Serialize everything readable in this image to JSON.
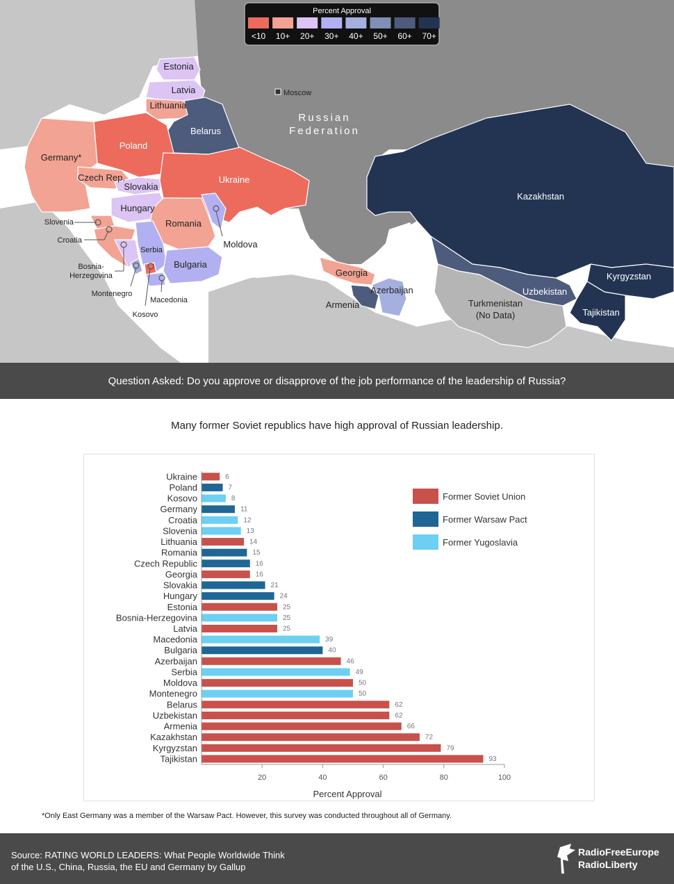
{
  "map": {
    "legend_title": "Percent Approval",
    "legend_bins": [
      {
        "label": "<10",
        "color": "#ec6b5c"
      },
      {
        "label": "10+",
        "color": "#f2a394"
      },
      {
        "label": "20+",
        "color": "#dcc5f4"
      },
      {
        "label": "30+",
        "color": "#b3b0f2"
      },
      {
        "label": "40+",
        "color": "#a5b0e0"
      },
      {
        "label": "50+",
        "color": "#7f8fb6"
      },
      {
        "label": "60+",
        "color": "#4d5b7d"
      },
      {
        "label": "70+",
        "color": "#233453"
      }
    ],
    "moscow_label": "Moscow",
    "russia_label_line1": "Russian",
    "russia_label_line2": "Federation",
    "country_labels": {
      "estonia": "Estonia",
      "latvia": "Latvia",
      "lithuania": "Lithuania",
      "belarus": "Belarus",
      "poland": "Poland",
      "germany": "Germany*",
      "czech": "Czech Rep.",
      "slovakia": "Slovakia",
      "ukraine": "Ukraine",
      "hungary": "Hungary",
      "romania": "Romania",
      "slovenia": "Slovenia",
      "croatia": "Croatia",
      "serbia": "Serbia",
      "moldova": "Moldova",
      "bulgaria": "Bulgaria",
      "bosnia_line1": "Bosnia-",
      "bosnia_line2": "Herzegovina",
      "montenegro": "Montenegro",
      "macedonia": "Macedonia",
      "kosovo": "Kosovo",
      "georgia": "Georgia",
      "azerbaijan": "Azerbaijan",
      "armenia": "Armenia",
      "kazakhstan": "Kazakhstan",
      "uzbekistan": "Uzbekistan",
      "kyrgyzstan": "Kyrgyzstan",
      "tajikistan": "Tajikistan",
      "turkmenistan_line1": "Turkmenistan",
      "turkmenistan_line2": "(No Data)"
    }
  },
  "question": "Question Asked: Do you approve or disapprove of the job performance of the leadership of Russia?",
  "chart_title": "Many former Soviet republics have high approval of Russian leadership.",
  "footnote": "*Only East Germany was a member of the Warsaw Pact. However, this survey was conducted throughout all of Germany.",
  "source": {
    "line1": "Source: RATING WORLD LEADERS: What People Worldwide Think",
    "line2": "of the U.S., China, Russia, the EU and Germany by Gallup"
  },
  "logo": {
    "line1": "RadioFreeEurope",
    "line2": "RadioLiberty"
  },
  "chart_data": {
    "type": "bar",
    "orientation": "horizontal",
    "xlabel": "Percent Approval",
    "xlim": [
      0,
      100
    ],
    "xticks": [
      20,
      40,
      60,
      80,
      100
    ],
    "groups": {
      "soviet": {
        "name": "Former Soviet Union",
        "color": "#c9514b"
      },
      "warsaw": {
        "name": "Former Warsaw Pact",
        "color": "#1f6694"
      },
      "yugoslavia": {
        "name": "Former Yugoslavia",
        "color": "#6dcff2"
      }
    },
    "legend_order": [
      "soviet",
      "warsaw",
      "yugoslavia"
    ],
    "categories": [
      "Ukraine",
      "Poland",
      "Kosovo",
      "Germany",
      "Croatia",
      "Slovenia",
      "Lithuania",
      "Romania",
      "Czech Republic",
      "Georgia",
      "Slovakia",
      "Hungary",
      "Estonia",
      "Bosnia-Herzegovina",
      "Latvia",
      "Macedonia",
      "Bulgaria",
      "Azerbaijan",
      "Serbia",
      "Moldova",
      "Montenegro",
      "Belarus",
      "Uzbekistan",
      "Armenia",
      "Kazakhstan",
      "Kyrgyzstan",
      "Tajikistan"
    ],
    "values": [
      6,
      7,
      8,
      11,
      12,
      13,
      14,
      15,
      16,
      16,
      21,
      24,
      25,
      25,
      25,
      39,
      40,
      46,
      49,
      50,
      50,
      62,
      62,
      66,
      72,
      79,
      93
    ],
    "group_of": [
      "soviet",
      "warsaw",
      "yugoslavia",
      "warsaw",
      "yugoslavia",
      "yugoslavia",
      "soviet",
      "warsaw",
      "warsaw",
      "soviet",
      "warsaw",
      "warsaw",
      "soviet",
      "yugoslavia",
      "soviet",
      "yugoslavia",
      "warsaw",
      "soviet",
      "yugoslavia",
      "soviet",
      "yugoslavia",
      "soviet",
      "soviet",
      "soviet",
      "soviet",
      "soviet",
      "soviet"
    ]
  }
}
